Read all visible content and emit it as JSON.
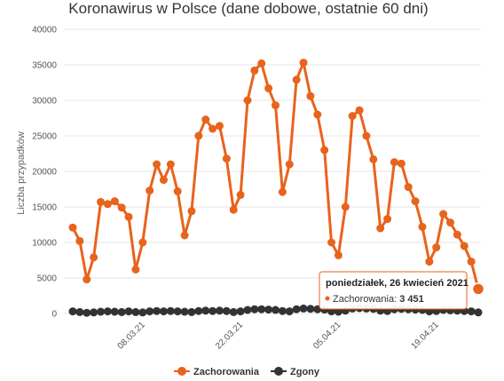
{
  "chart_data": {
    "type": "line",
    "title": "Koronawirus w Polsce (dane dobowe, ostatnie 60 dni)",
    "ylabel": "Liczba przypadków",
    "xlabel": "",
    "ylim": [
      0,
      40000
    ],
    "yticks": [
      "0",
      "5000",
      "10000",
      "15000",
      "20000",
      "25000",
      "30000",
      "35000",
      "40000"
    ],
    "ytick_values": [
      0,
      5000,
      10000,
      15000,
      20000,
      25000,
      30000,
      35000,
      40000
    ],
    "xtick_labels": [
      "08.03.21",
      "22.03.21",
      "05.04.21",
      "19.04.21"
    ],
    "xtick_indices": [
      10,
      24,
      38,
      52
    ],
    "grid": true,
    "legend": "bottom",
    "series": [
      {
        "name": "Zachorowania",
        "color": "#e8631c",
        "values": [
          12100,
          10200,
          4800,
          7900,
          15700,
          15400,
          15800,
          14900,
          13600,
          6200,
          10000,
          17300,
          21000,
          18800,
          21000,
          17200,
          11000,
          14400,
          25000,
          27300,
          26000,
          26400,
          21800,
          14600,
          16700,
          30000,
          34200,
          35200,
          31700,
          29300,
          17100,
          21000,
          32900,
          35300,
          30600,
          28000,
          23000,
          10000,
          8200,
          15000,
          27800,
          28600,
          25000,
          21700,
          12000,
          13300,
          21300,
          21100,
          17800,
          15800,
          12200,
          7300,
          9300,
          14000,
          12800,
          11100,
          9500,
          7300,
          3451
        ]
      },
      {
        "name": "Zgony",
        "color": "#333333",
        "values": [
          300,
          200,
          100,
          150,
          250,
          300,
          250,
          200,
          300,
          200,
          150,
          300,
          350,
          300,
          350,
          300,
          250,
          200,
          350,
          400,
          350,
          400,
          350,
          200,
          300,
          500,
          600,
          600,
          550,
          500,
          350,
          300,
          600,
          700,
          650,
          600,
          550,
          300,
          250,
          400,
          700,
          750,
          700,
          650,
          400,
          350,
          600,
          650,
          600,
          550,
          500,
          300,
          350,
          500,
          450,
          400,
          350,
          300,
          150
        ]
      }
    ],
    "tooltip": {
      "title": "poniedziałek, 26 kwiecień 2021",
      "series": "Zachorowania",
      "value": "3 451"
    }
  },
  "legend": {
    "items": [
      "Zachorowania",
      "Zgony"
    ]
  }
}
